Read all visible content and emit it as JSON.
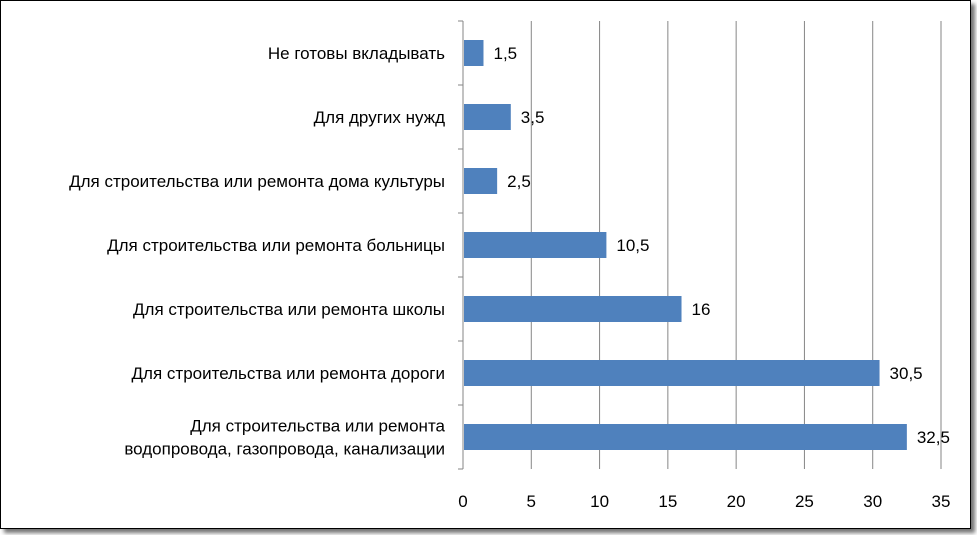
{
  "chart_data": {
    "type": "bar",
    "orientation": "horizontal",
    "categories": [
      [
        "Не готовы вкладывать"
      ],
      [
        "Для других нужд"
      ],
      [
        "Для строительства или ремонта дома культуры"
      ],
      [
        "Для строительства или ремонта больницы"
      ],
      [
        "Для строительства или ремонта школы"
      ],
      [
        "Для строительства или ремонта дороги"
      ],
      [
        "Для строительства или ремонта",
        "водопровода, газопровода, канализации"
      ]
    ],
    "values": [
      1.5,
      3.5,
      2.5,
      10.5,
      16,
      30.5,
      32.5
    ],
    "value_labels": [
      "1,5",
      "3,5",
      "2,5",
      "10,5",
      "16",
      "30,5",
      "32,5"
    ],
    "xlim": [
      0,
      35
    ],
    "xticks": [
      0,
      5,
      10,
      15,
      20,
      25,
      30,
      35
    ],
    "grid": "vertical",
    "legend": "none",
    "title": "",
    "xlabel": "",
    "ylabel": "",
    "bar_color": "#4f81bd",
    "grid_color": "#868686"
  }
}
